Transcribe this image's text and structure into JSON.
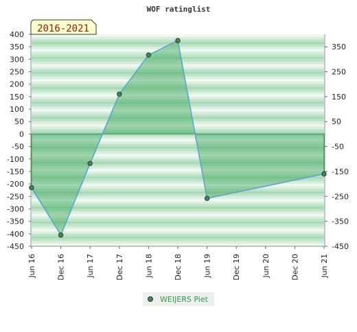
{
  "chart_data": {
    "type": "area",
    "title": "WOF ratinglist",
    "badge": "2016-2021",
    "x_ticks": [
      "Jun 16",
      "Dec 16",
      "Jun 17",
      "Dec 17",
      "Jun 18",
      "Dec 18",
      "Jun 19",
      "Dec 19",
      "Jun 20",
      "Dec 20",
      "Jun 21"
    ],
    "y_left": {
      "min": -450,
      "max": 400,
      "step": 50
    },
    "y_right": {
      "min": -450,
      "max": 350,
      "step": 100
    },
    "series": [
      {
        "name": "WEIJERS Piet",
        "color": "#7cc48f",
        "line_color": "#5aa0d0",
        "x": [
          0,
          1,
          2,
          3,
          4,
          5,
          6,
          10
        ],
        "y": [
          -215,
          -405,
          -118,
          160,
          317,
          375,
          -258,
          -160
        ]
      }
    ],
    "band_colors": [
      "#a8d9b4",
      "#eaf6ee"
    ]
  }
}
